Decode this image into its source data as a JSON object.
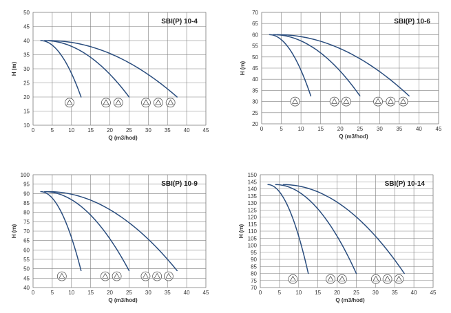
{
  "colors": {
    "curve": "#2a4d7e"
  },
  "chart_data": [
    {
      "type": "line",
      "title": "SBI(P) 10-4",
      "xlabel": "Q (m3/hod)",
      "ylabel": "H (m)",
      "xlim": [
        0,
        45
      ],
      "ylim": [
        10,
        50
      ],
      "xticks": [
        "0",
        "5",
        "10",
        "15",
        "20",
        "25",
        "30",
        "35",
        "40",
        "45"
      ],
      "yticks": [
        "10",
        "15",
        "20",
        "25",
        "30",
        "35",
        "40",
        "45",
        "50"
      ],
      "grid": true,
      "series": [
        {
          "x": [
            2,
            12.5
          ],
          "y": [
            40,
            20
          ]
        },
        {
          "x": [
            3,
            25
          ],
          "y": [
            40,
            20
          ]
        },
        {
          "x": [
            4,
            37.5
          ],
          "y": [
            40,
            20
          ]
        }
      ],
      "stage_symbols": [
        {
          "x": 9.5,
          "y": 18
        },
        {
          "x": 19,
          "y": 18
        },
        {
          "x": 22.2,
          "y": 18
        },
        {
          "x": 29.4,
          "y": 18
        },
        {
          "x": 32.6,
          "y": 18
        },
        {
          "x": 35.8,
          "y": 18
        }
      ]
    },
    {
      "type": "line",
      "title": "SBI(P) 10-6",
      "xlabel": "Q (m3/hod)",
      "ylabel": "H (m)",
      "xlim": [
        0,
        45
      ],
      "ylim": [
        20,
        70
      ],
      "xticks": [
        "0",
        "5",
        "10",
        "15",
        "20",
        "25",
        "30",
        "35",
        "40",
        "45"
      ],
      "yticks": [
        "20",
        "25",
        "30",
        "35",
        "40",
        "45",
        "50",
        "55",
        "60",
        "65",
        "70"
      ],
      "grid": true,
      "series": [
        {
          "x": [
            2,
            12.5
          ],
          "y": [
            60,
            32.5
          ]
        },
        {
          "x": [
            3,
            25
          ],
          "y": [
            60,
            32.5
          ]
        },
        {
          "x": [
            4,
            37.5
          ],
          "y": [
            60,
            32.5
          ]
        }
      ],
      "stage_symbols": [
        {
          "x": 8.5,
          "y": 30
        },
        {
          "x": 18.5,
          "y": 30
        },
        {
          "x": 21.5,
          "y": 30
        },
        {
          "x": 29.6,
          "y": 30
        },
        {
          "x": 32.8,
          "y": 30
        },
        {
          "x": 36,
          "y": 30
        }
      ]
    },
    {
      "type": "line",
      "title": "SBI(P) 10-9",
      "xlabel": "Q (m3/hod)",
      "ylabel": "H (m)",
      "xlim": [
        0,
        45
      ],
      "ylim": [
        40,
        100
      ],
      "xticks": [
        "0",
        "5",
        "10",
        "15",
        "20",
        "25",
        "30",
        "35",
        "40",
        "45"
      ],
      "yticks": [
        "40",
        "45",
        "50",
        "55",
        "60",
        "65",
        "70",
        "75",
        "80",
        "85",
        "90",
        "95",
        "100"
      ],
      "grid": true,
      "series": [
        {
          "x": [
            2,
            12.5
          ],
          "y": [
            91,
            49
          ]
        },
        {
          "x": [
            3,
            25
          ],
          "y": [
            91,
            49
          ]
        },
        {
          "x": [
            4,
            37.5
          ],
          "y": [
            91,
            49
          ]
        }
      ],
      "stage_symbols": [
        {
          "x": 7.5,
          "y": 46
        },
        {
          "x": 18.8,
          "y": 46
        },
        {
          "x": 21.8,
          "y": 46
        },
        {
          "x": 29.3,
          "y": 46
        },
        {
          "x": 32.3,
          "y": 46
        },
        {
          "x": 35.3,
          "y": 46
        }
      ]
    },
    {
      "type": "line",
      "title": "SBI(P) 10-14",
      "xlabel": "Q (m3/hod)",
      "ylabel": "H (m)",
      "xlim": [
        0,
        45
      ],
      "ylim": [
        70,
        150
      ],
      "xticks": [
        "0",
        "5",
        "10",
        "15",
        "20",
        "25",
        "30",
        "35",
        "40",
        "45"
      ],
      "yticks": [
        "70",
        "75",
        "80",
        "85",
        "90",
        "95",
        "100",
        "105",
        "110",
        "115",
        "120",
        "125",
        "130",
        "135",
        "140",
        "145",
        "150"
      ],
      "grid": true,
      "series": [
        {
          "x": [
            2,
            12.5
          ],
          "y": [
            143,
            80
          ]
        },
        {
          "x": [
            4,
            25
          ],
          "y": [
            143,
            80
          ]
        },
        {
          "x": [
            6,
            37.5
          ],
          "y": [
            143,
            80
          ]
        }
      ],
      "stage_symbols": [
        {
          "x": 8.5,
          "y": 76
        },
        {
          "x": 18.3,
          "y": 76
        },
        {
          "x": 21.3,
          "y": 76
        },
        {
          "x": 30.1,
          "y": 76
        },
        {
          "x": 33.1,
          "y": 76
        },
        {
          "x": 36.1,
          "y": 76
        }
      ]
    }
  ]
}
